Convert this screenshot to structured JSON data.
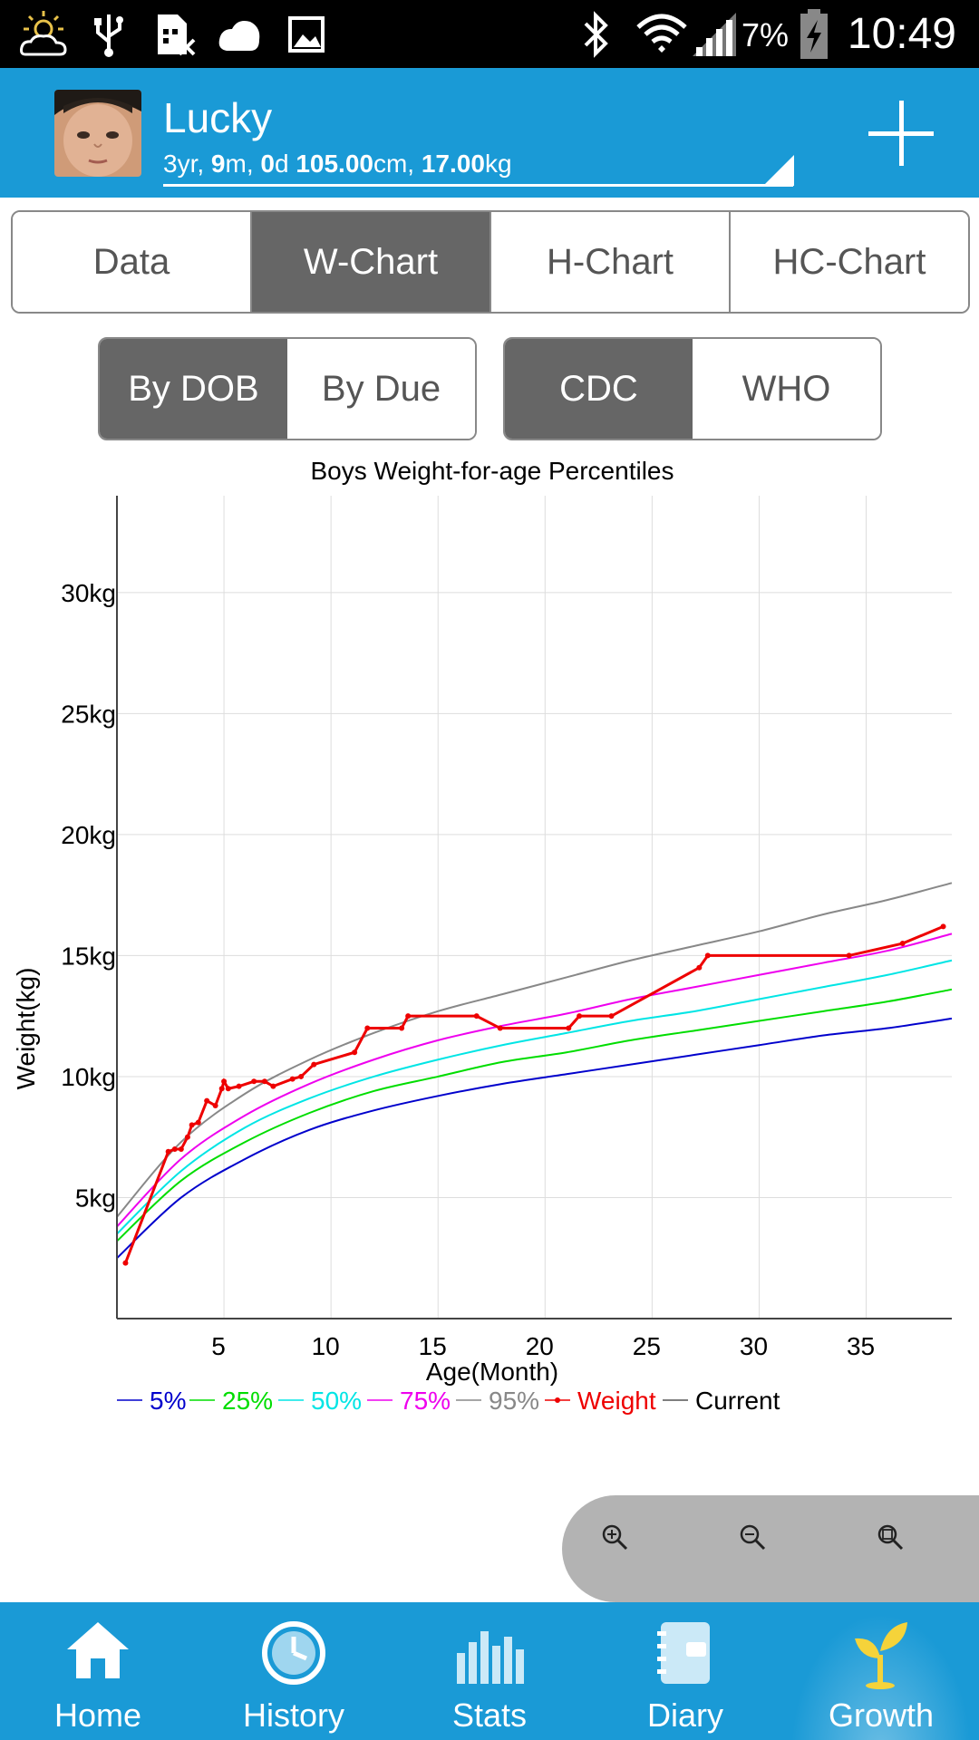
{
  "status_bar": {
    "time": "10:49",
    "battery": "7%"
  },
  "header": {
    "name": "Lucky",
    "age_years": "3",
    "age_months": "9",
    "age_days": "0",
    "height": "105.00",
    "weight": "17.00",
    "unit_yr": "yr, ",
    "unit_m": "m, ",
    "unit_d": "d ",
    "unit_cm": "cm, ",
    "unit_kg": "kg"
  },
  "tabs": [
    {
      "label": "Data",
      "active": false
    },
    {
      "label": "W-Chart",
      "active": true
    },
    {
      "label": "H-Chart",
      "active": false
    },
    {
      "label": "HC-Chart",
      "active": false
    }
  ],
  "age_toggle": [
    {
      "label": "By DOB",
      "active": true
    },
    {
      "label": "By Due",
      "active": false
    }
  ],
  "standard_toggle": [
    {
      "label": "CDC",
      "active": true
    },
    {
      "label": "WHO",
      "active": false
    }
  ],
  "chart_data": {
    "type": "line",
    "title": "Boys Weight-for-age Percentiles",
    "xlabel": "Age(Month)",
    "ylabel": "Weight(kg)",
    "xlim": [
      0,
      39
    ],
    "ylim": [
      0,
      34
    ],
    "x_ticks": [
      5,
      10,
      15,
      20,
      25,
      30,
      35
    ],
    "x_tick_labels": [
      "5",
      "10",
      "15",
      "20",
      "25",
      "30",
      "35"
    ],
    "y_ticks": [
      5,
      10,
      15,
      20,
      25,
      30
    ],
    "y_tick_labels": [
      "5kg",
      "10kg",
      "15kg",
      "20kg",
      "25kg",
      "30kg"
    ],
    "grid": true,
    "legend_position": "bottom",
    "x": [
      0,
      3,
      6,
      9,
      12,
      15,
      18,
      21,
      24,
      27,
      30,
      33,
      36,
      39
    ],
    "series": [
      {
        "name": "5%",
        "color": "#0000cc",
        "values": [
          2.5,
          5.0,
          6.6,
          7.8,
          8.6,
          9.2,
          9.7,
          10.1,
          10.5,
          10.9,
          11.3,
          11.7,
          12.0,
          12.4
        ]
      },
      {
        "name": "25%",
        "color": "#00dd00",
        "values": [
          3.2,
          5.7,
          7.3,
          8.5,
          9.4,
          10.0,
          10.6,
          11.0,
          11.5,
          11.9,
          12.3,
          12.7,
          13.1,
          13.6
        ]
      },
      {
        "name": "50%",
        "color": "#00e5e5",
        "values": [
          3.5,
          6.1,
          7.9,
          9.1,
          10.0,
          10.7,
          11.3,
          11.8,
          12.3,
          12.7,
          13.2,
          13.7,
          14.2,
          14.8
        ]
      },
      {
        "name": "75%",
        "color": "#ee00ee",
        "values": [
          3.8,
          6.6,
          8.4,
          9.7,
          10.7,
          11.5,
          12.1,
          12.6,
          13.2,
          13.7,
          14.2,
          14.7,
          15.2,
          15.9
        ]
      },
      {
        "name": "95%",
        "color": "#888888",
        "values": [
          4.2,
          7.3,
          9.3,
          10.7,
          11.8,
          12.7,
          13.4,
          14.1,
          14.8,
          15.4,
          16.0,
          16.7,
          17.3,
          18.0
        ]
      }
    ],
    "weight_series": {
      "name": "Weight",
      "color": "#ee0000",
      "x": [
        0.4,
        2.4,
        2.7,
        3.0,
        3.3,
        3.5,
        3.8,
        4.2,
        4.6,
        4.9,
        5.0,
        5.2,
        5.7,
        6.4,
        6.9,
        7.3,
        8.2,
        8.6,
        9.2,
        11.1,
        11.7,
        13.3,
        13.6,
        16.8,
        17.9,
        21.1,
        21.6,
        23.1,
        27.2,
        27.6,
        34.2,
        36.7,
        38.6
      ],
      "values": [
        2.3,
        6.9,
        7.0,
        7.0,
        7.5,
        8.0,
        8.1,
        9.0,
        8.8,
        9.5,
        9.8,
        9.5,
        9.6,
        9.8,
        9.8,
        9.6,
        9.9,
        10.0,
        10.5,
        11.0,
        12.0,
        12.0,
        12.5,
        12.5,
        12.0,
        12.0,
        12.5,
        12.5,
        14.5,
        15.0,
        15.0,
        15.5,
        16.2
      ]
    },
    "current_legend": {
      "name": "Current",
      "color": "#555555"
    }
  },
  "bottom_nav": [
    {
      "label": "Home",
      "icon": "home-icon",
      "active": false
    },
    {
      "label": "History",
      "icon": "clock-icon",
      "active": false
    },
    {
      "label": "Stats",
      "icon": "bar-chart-icon",
      "active": false
    },
    {
      "label": "Diary",
      "icon": "notebook-icon",
      "active": false
    },
    {
      "label": "Growth",
      "icon": "sprout-icon",
      "active": true
    }
  ]
}
